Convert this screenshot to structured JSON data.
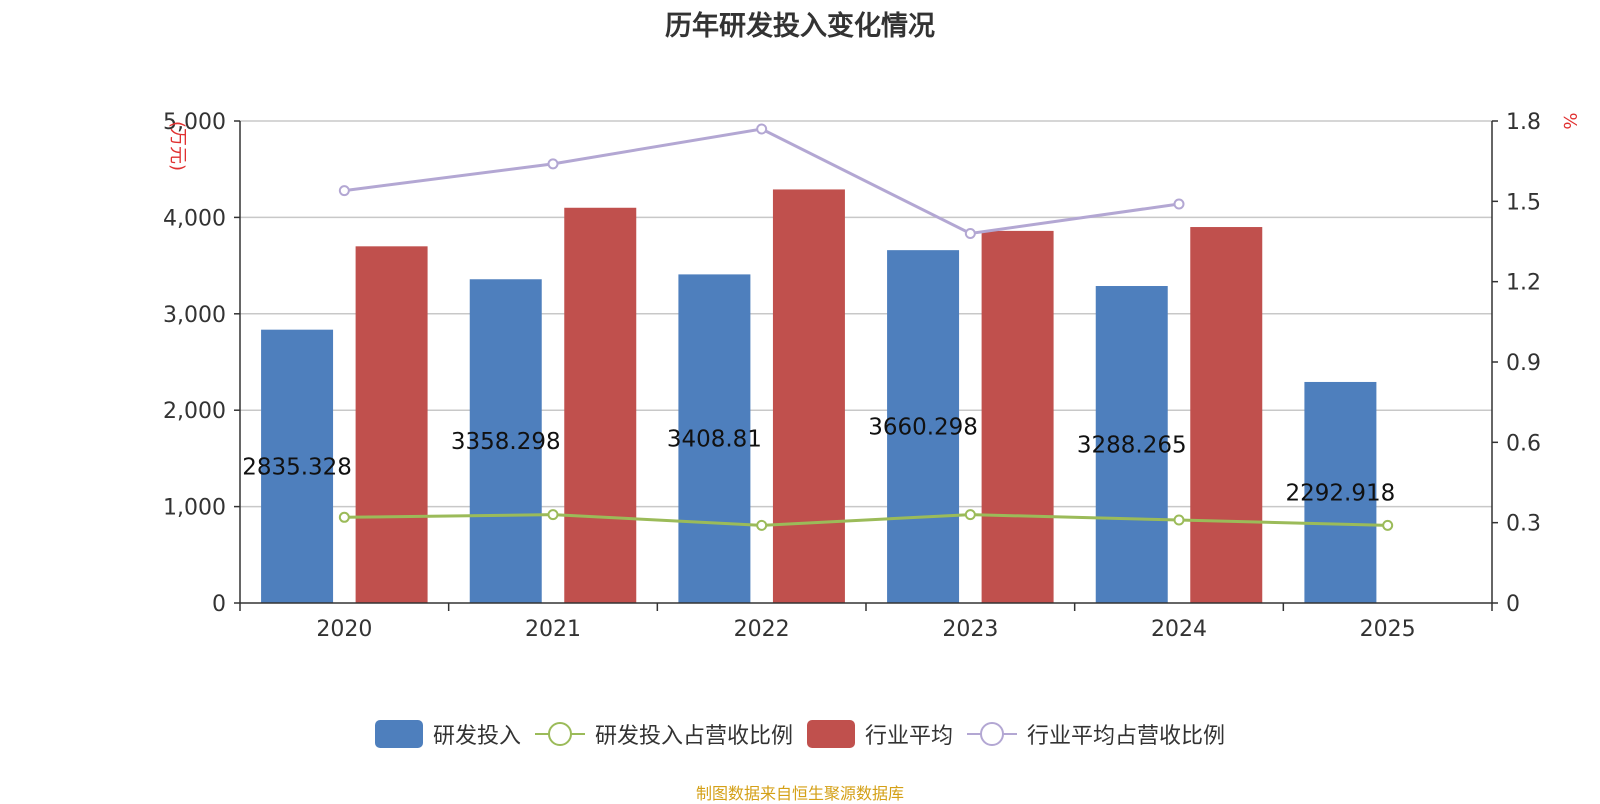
{
  "chart_data": {
    "type": "bar",
    "title": "历年研发投入变化情况",
    "categories": [
      "2020",
      "2021",
      "2022",
      "2023",
      "2024",
      "2025"
    ],
    "y_left": {
      "unit_label": "(万元)",
      "ylim": [
        0,
        5000
      ],
      "ticks": [
        0,
        1000,
        2000,
        3000,
        4000,
        5000
      ],
      "tick_labels": [
        "0",
        "1,000",
        "2,000",
        "3,000",
        "4,000",
        "5,000"
      ]
    },
    "y_right": {
      "unit_label": "%",
      "ylim": [
        0,
        1.8
      ],
      "ticks": [
        0,
        0.3,
        0.6,
        0.9,
        1.2,
        1.5,
        1.8
      ],
      "tick_labels": [
        "0",
        "0.3",
        "0.6",
        "0.9",
        "1.2",
        "1.5",
        "1.8"
      ]
    },
    "grid": true,
    "legend_position": "bottom",
    "series": [
      {
        "name": "研发投入",
        "kind": "bar",
        "axis": "left",
        "color": "#4e7fbd",
        "values": [
          2835.328,
          3358.298,
          3408.81,
          3660.298,
          3288.265,
          2292.918
        ],
        "data_labels": [
          "2835.328",
          "3358.298",
          "3408.81",
          "3660.298",
          "3288.265",
          "2292.918"
        ]
      },
      {
        "name": "研发投入占营收比例",
        "kind": "line",
        "axis": "right",
        "color": "#9bbb59",
        "values": [
          0.32,
          0.33,
          0.29,
          0.33,
          0.31,
          0.29
        ]
      },
      {
        "name": "行业平均",
        "kind": "bar",
        "axis": "left",
        "color": "#c0504d",
        "values": [
          3700,
          4100,
          4290,
          3860,
          3900,
          null
        ]
      },
      {
        "name": "行业平均占营收比例",
        "kind": "line",
        "axis": "right",
        "color": "#b3a7d3",
        "values": [
          1.54,
          1.64,
          1.77,
          1.38,
          1.49,
          null
        ]
      }
    ],
    "source": "制图数据来自恒生聚源数据库"
  }
}
